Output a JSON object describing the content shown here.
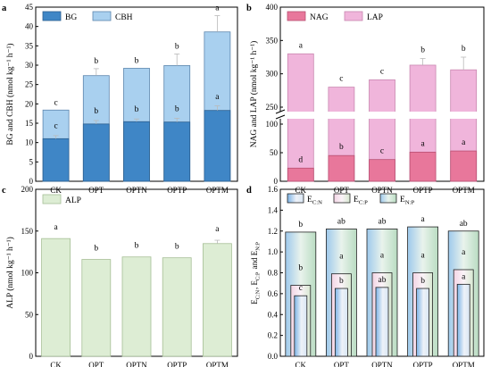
{
  "chart_data": [
    {
      "panel": "a",
      "type": "bar",
      "categories": [
        "CK",
        "OPT",
        "OPTN",
        "OPTP",
        "OPTM"
      ],
      "ylabel": "BG and CBH (nmol kg⁻¹ h⁻¹)",
      "ylim": [
        0,
        45
      ],
      "yticks": [
        0,
        5,
        10,
        15,
        20,
        25,
        30,
        35,
        40,
        45
      ],
      "legend": [
        "BG",
        "CBH"
      ],
      "series": [
        {
          "name": "BG",
          "color": "#3f86c6",
          "values": [
            11,
            14.8,
            15.4,
            15.3,
            18.3
          ],
          "errors": [
            0.8,
            0.9,
            0.7,
            1.0,
            1.2
          ],
          "letters": [
            "c",
            "b",
            "b",
            "b",
            "a"
          ]
        },
        {
          "name": "CBH",
          "color": "#a9d0ef",
          "values": [
            18.4,
            27.3,
            29.2,
            29.9,
            38.6
          ],
          "errors": [
            0,
            1.8,
            0,
            3.0,
            4.2
          ],
          "letters": [
            "c",
            "b",
            "b",
            "b",
            "a"
          ]
        }
      ]
    },
    {
      "panel": "b",
      "type": "bar",
      "categories": [
        "CK",
        "OPT",
        "OPTN",
        "OPTP",
        "OPTM"
      ],
      "ylabel": "NAG and LAP (nmol kg⁻¹ h⁻¹)",
      "yticks_lower": [
        0,
        50,
        100
      ],
      "yticks_upper": [
        250,
        300,
        350,
        400
      ],
      "axis_break": true,
      "legend": [
        "NAG",
        "LAP"
      ],
      "series": [
        {
          "name": "NAG",
          "color": "#e8779b",
          "values": [
            23,
            45,
            38,
            51,
            53
          ],
          "errors": [
            1,
            2,
            1,
            1,
            1
          ],
          "letters": [
            "d",
            "b",
            "c",
            "a",
            "a"
          ]
        },
        {
          "name": "LAP",
          "color": "#f0b5db",
          "values": [
            330,
            280,
            291,
            313,
            306
          ],
          "errors": [
            0,
            0,
            0,
            10,
            19
          ],
          "letters": [
            "a",
            "c",
            "c",
            "b",
            "b"
          ]
        }
      ]
    },
    {
      "panel": "c",
      "type": "bar",
      "categories": [
        "CK",
        "OPT",
        "OPTN",
        "OPTP",
        "OPTM"
      ],
      "ylabel": "ALP (nmol kg⁻¹ h⁻¹)",
      "ylim": [
        0,
        200
      ],
      "yticks": [
        0,
        50,
        100,
        150,
        200
      ],
      "legend": [
        "ALP"
      ],
      "series": [
        {
          "name": "ALP",
          "color": "#ddedd4",
          "values": [
            141,
            116,
            119,
            118,
            135
          ],
          "errors": [
            0,
            0,
            0,
            0,
            4
          ],
          "letters": [
            "a",
            "b",
            "b",
            "b",
            "a"
          ]
        }
      ]
    },
    {
      "panel": "d",
      "type": "bar",
      "categories": [
        "CK",
        "OPT",
        "OPTN",
        "OPTP",
        "OPTM"
      ],
      "ylabel": "E_C:N, E_C:P and E_N:P",
      "ylim": [
        0,
        1.6
      ],
      "yticks": [
        "0.0",
        "0.2",
        "0.4",
        "0.6",
        "0.8",
        "1.0",
        "1.2",
        "1.4",
        "1.6"
      ],
      "legend": [
        "E_C:N",
        "E_C:P",
        "E_N:P"
      ],
      "series": [
        {
          "name": "E_C:N",
          "values": [
            0.58,
            0.65,
            0.66,
            0.65,
            0.69
          ],
          "letters": [
            "c",
            "b",
            "ab",
            "b",
            "a"
          ]
        },
        {
          "name": "E_C:P",
          "values": [
            0.68,
            0.79,
            0.8,
            0.8,
            0.83
          ],
          "letters": [
            "b",
            "a",
            "a",
            "a",
            "a"
          ]
        },
        {
          "name": "E_N:P",
          "values": [
            1.19,
            1.22,
            1.22,
            1.24,
            1.2
          ],
          "letters": [
            "b",
            "ab",
            "ab",
            "a",
            "ab"
          ]
        }
      ]
    }
  ]
}
